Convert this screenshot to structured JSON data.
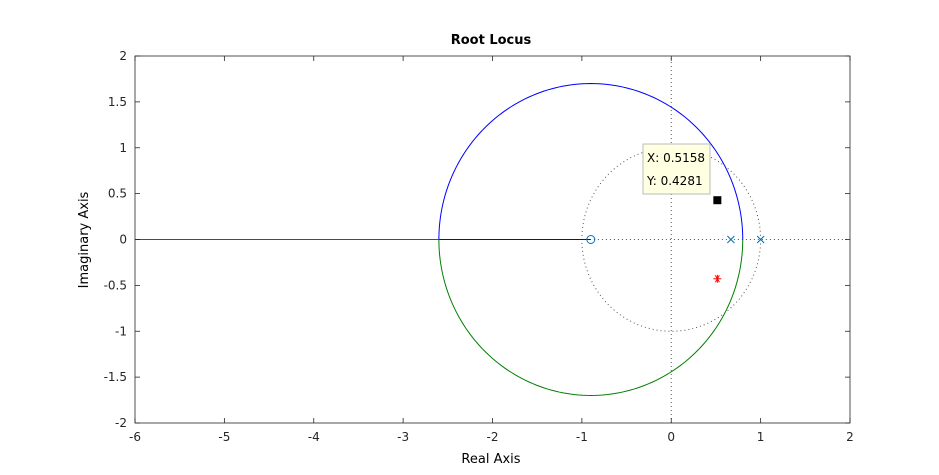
{
  "chart_data": {
    "type": "line",
    "title": "Root Locus",
    "xlabel": "Real Axis",
    "ylabel": "Imaginary Axis",
    "xlim": [
      -6,
      2
    ],
    "ylim": [
      -2,
      2
    ],
    "xticks": [
      -6,
      -5,
      -4,
      -3,
      -2,
      -1,
      0,
      1,
      2
    ],
    "yticks": [
      -2,
      -1.5,
      -1,
      -0.5,
      0,
      0.5,
      1,
      1.5,
      2
    ],
    "xtick_labels": [
      "-6",
      "-5",
      "-4",
      "-3",
      "-2",
      "-1",
      "0",
      "1",
      "2"
    ],
    "ytick_labels": [
      "-2",
      "-1.5",
      "-1",
      "-0.5",
      "0",
      "0.5",
      "1",
      "1.5",
      "2"
    ],
    "grid": false,
    "colors": {
      "branch_upper": "#0000ff",
      "branch_lower": "#008000",
      "pole_zero_marker": "#0072bd",
      "closed_loop_pole": "#ff0000",
      "axes": "#262626",
      "unit_circle": "#555555",
      "datatip_bg": "#ffffe1",
      "datatip_border": "#bbbbbb"
    },
    "series": [
      {
        "style": "upper-branch",
        "circle": {
          "center": [
            -0.9,
            0
          ],
          "radius": 1.7,
          "from_angle_deg": 0,
          "to_angle_deg": 180
        },
        "real_axis_segment": [
          -2.6,
          -0.9
        ]
      },
      {
        "style": "lower-branch",
        "circle": {
          "center": [
            -0.9,
            0
          ],
          "radius": 1.7,
          "from_angle_deg": 180,
          "to_angle_deg": 360
        },
        "real_axis_segment": [
          -6,
          -2.6
        ]
      }
    ],
    "poles": [
      [
        0.667,
        0
      ],
      [
        1.0,
        0
      ]
    ],
    "zeros": [
      [
        -0.9,
        0
      ]
    ],
    "reference": {
      "unit_circle": {
        "center": [
          0,
          0
        ],
        "radius": 1
      },
      "real_axis_dotted": [
        -1,
        2
      ],
      "imag_axis_dotted": [
        -2,
        2
      ]
    },
    "selected_point": [
      0.5158,
      0.4281
    ],
    "conjugate_point": [
      0.5158,
      -0.4281
    ],
    "datatip": {
      "x_text": "X: 0.5158",
      "y_text": "Y: 0.4281"
    }
  }
}
